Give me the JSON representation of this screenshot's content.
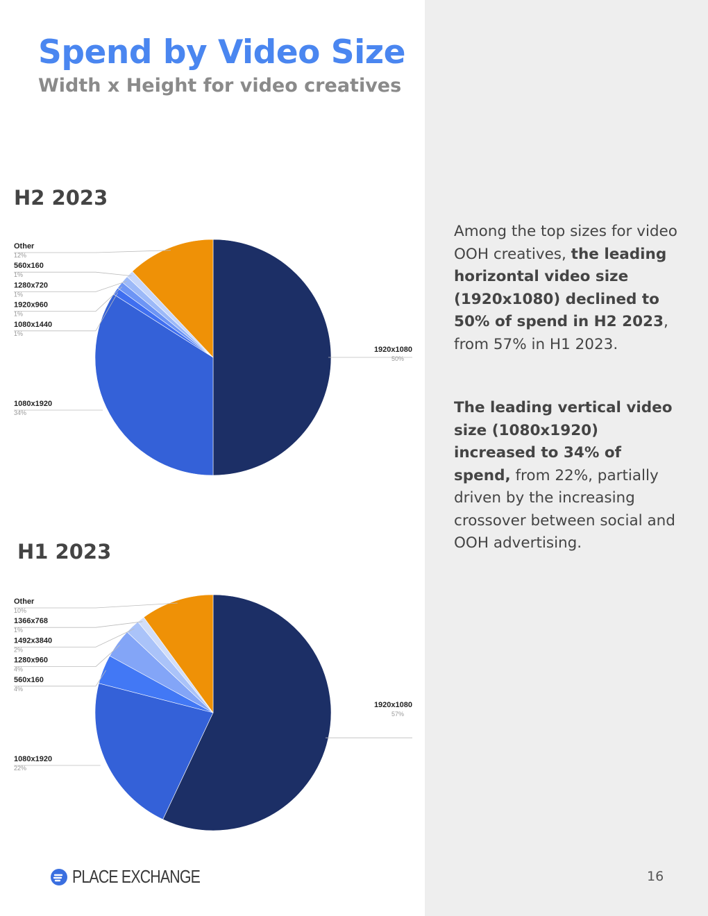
{
  "title": "Spend by Video Size",
  "subtitle": "Width x Height for video creatives",
  "body": {
    "p1": {
      "pre": "Among the top sizes for video OOH creatives, ",
      "bold": "the leading horizontal video size (1920x1080) declined to 50% of spend in H2 2023",
      "post": ", from 57% in H1 2023."
    },
    "p2": {
      "bold": "The leading vertical video size (1080x1920) increased to 34% of spend,",
      "post": " from 22%, partially driven by the increasing crossover between social and OOH advertising."
    }
  },
  "footer": {
    "brand": "PLACE EXCHANGE",
    "page_number": "16"
  },
  "chart_data": [
    {
      "type": "pie",
      "title": "H2 2023",
      "slices": [
        {
          "label": "1920x1080",
          "pct_label": "50%",
          "value": 50,
          "color": "#1c2f66"
        },
        {
          "label": "1080x1920",
          "pct_label": "34%",
          "value": 34,
          "color": "#3461d8"
        },
        {
          "label": "1080x1440",
          "pct_label": "1%",
          "value": 1,
          "color": "#3f6ff0"
        },
        {
          "label": "1920x960",
          "pct_label": "1%",
          "value": 1,
          "color": "#6d95f5"
        },
        {
          "label": "1280x720",
          "pct_label": "1%",
          "value": 1,
          "color": "#9cb9f8"
        },
        {
          "label": "560x160",
          "pct_label": "1%",
          "value": 1,
          "color": "#c8d7fa"
        },
        {
          "label": "Other",
          "pct_label": "12%",
          "value": 12,
          "color": "#ef9106"
        }
      ]
    },
    {
      "type": "pie",
      "title": "H1 2023",
      "slices": [
        {
          "label": "1920x1080",
          "pct_label": "57%",
          "value": 57,
          "color": "#1c2f66"
        },
        {
          "label": "1080x1920",
          "pct_label": "22%",
          "value": 22,
          "color": "#3461d8"
        },
        {
          "label": "560x160",
          "pct_label": "4%",
          "value": 4,
          "color": "#4278f5"
        },
        {
          "label": "1280x960",
          "pct_label": "4%",
          "value": 4,
          "color": "#83a5f7"
        },
        {
          "label": "1492x3840",
          "pct_label": "2%",
          "value": 2,
          "color": "#aac3f9"
        },
        {
          "label": "1366x768",
          "pct_label": "1%",
          "value": 1,
          "color": "#d2def9"
        },
        {
          "label": "Other",
          "pct_label": "10%",
          "value": 10,
          "color": "#ef9106"
        }
      ]
    }
  ]
}
